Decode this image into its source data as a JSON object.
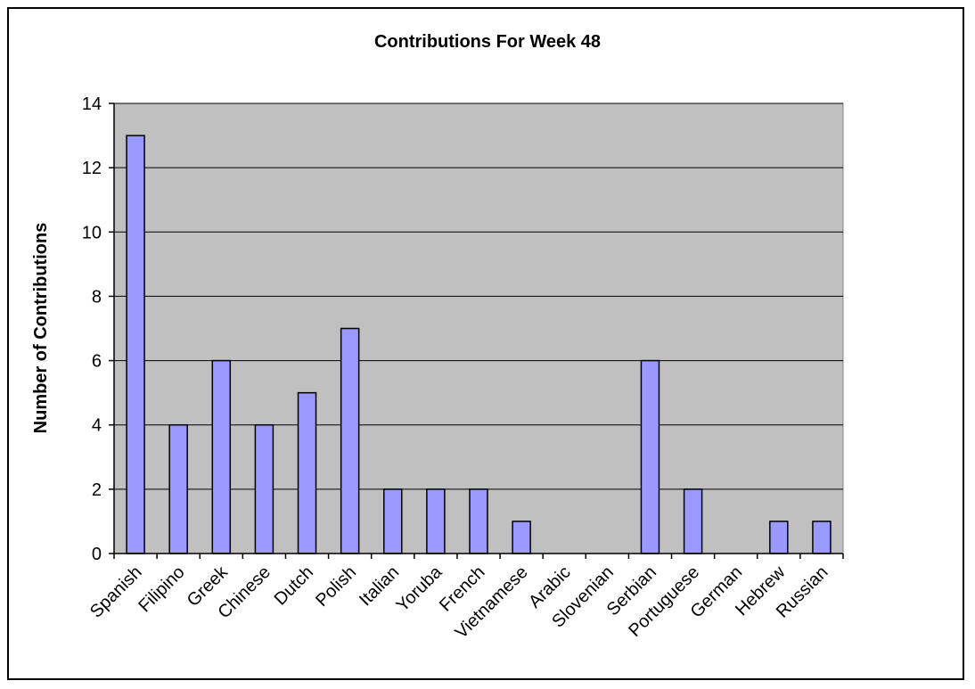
{
  "chart_data": {
    "type": "bar",
    "title": "Contributions For Week 48",
    "xlabel": "",
    "ylabel": "Number of Contributions",
    "ylim": [
      0,
      14
    ],
    "yticks": [
      0,
      2,
      4,
      6,
      8,
      10,
      12,
      14
    ],
    "grid": true,
    "legend": "none",
    "categories": [
      "Spanish",
      "Filipino",
      "Greek",
      "Chinese",
      "Dutch",
      "Polish",
      "Italian",
      "Yoruba",
      "French",
      "Vietnamese",
      "Arabic",
      "Slovenian",
      "Serbian",
      "Portuguese",
      "German",
      "Hebrew",
      "Russian"
    ],
    "values": [
      13,
      4,
      6,
      4,
      5,
      7,
      2,
      2,
      2,
      1,
      0,
      0,
      6,
      2,
      0,
      1,
      1
    ],
    "colors": {
      "bar_fill": "#9999ff",
      "plot_background": "#c0c0c0",
      "gridline": "#000000"
    }
  }
}
